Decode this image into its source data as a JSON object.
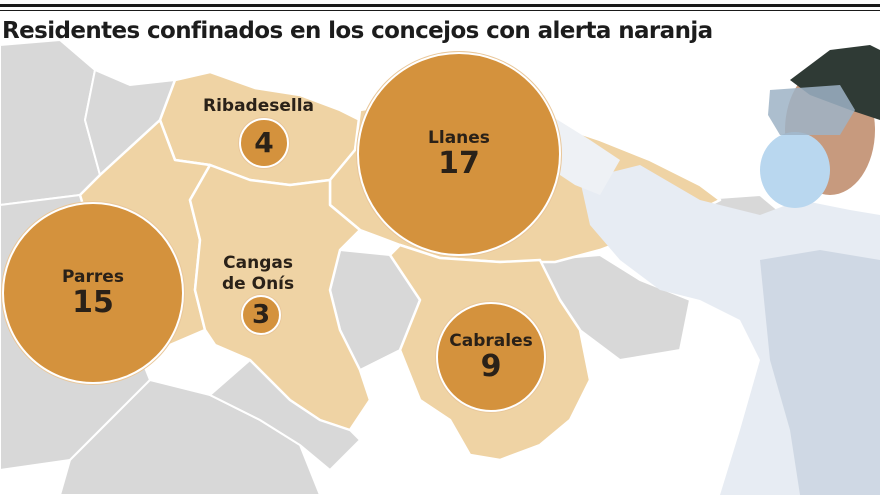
{
  "title": "Residentes confinados en los concejos con alerta naranja",
  "colors": {
    "region": "#efd3a4",
    "region_border": "#ffffff",
    "neighbor": "#d8d8d8",
    "bubble": "#d4923d",
    "text": "#2a2118"
  },
  "concejos": [
    {
      "id": "ribadesella",
      "name": "Ribadesella",
      "value": "4"
    },
    {
      "id": "llanes",
      "name": "Llanes",
      "value": "17"
    },
    {
      "id": "parres",
      "name": "Parres",
      "value": "15"
    },
    {
      "id": "cangas",
      "name_line1": "Cangas",
      "name_line2": "de Onís",
      "value": "3"
    },
    {
      "id": "cabrales",
      "name": "Cabrales",
      "value": "9"
    }
  ]
}
